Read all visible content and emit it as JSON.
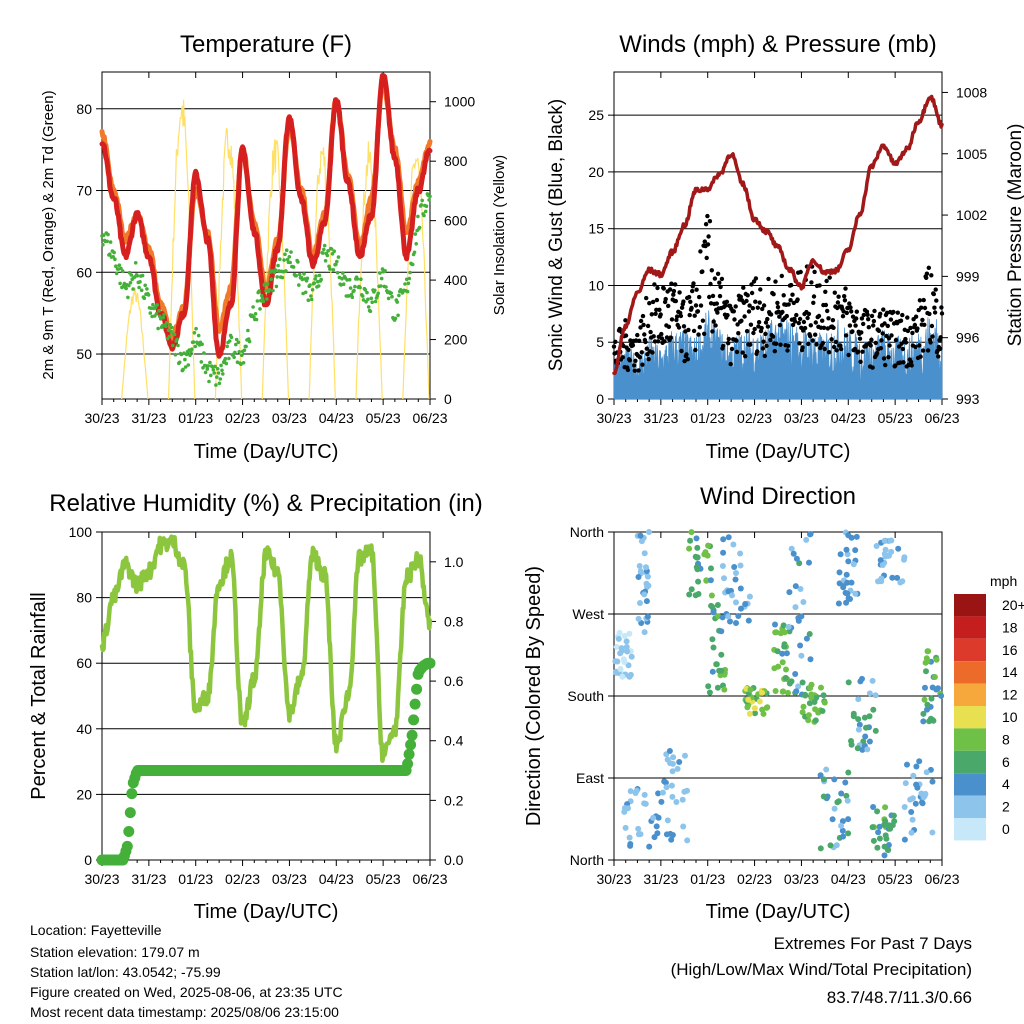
{
  "colors": {
    "temp_2m": "#d62020",
    "temp_9m": "#f07a2a",
    "dewpoint": "#44b03a",
    "solar": "#ffe066",
    "wind": "#4a90cc",
    "gust": "#000000",
    "pressure": "#a01818",
    "rh": "#8cc63e",
    "precip": "#44b03a",
    "extremes": "#c62828"
  },
  "x_ticks": [
    "30/23",
    "31/23",
    "01/23",
    "02/23",
    "03/23",
    "04/23",
    "05/23",
    "06/23"
  ],
  "chart_data": [
    {
      "id": "temperature",
      "type": "line",
      "title": "Temperature (F)",
      "xlabel": "Time (Day/UTC)",
      "ylabel": "2m & 9m T (Red, Orange) & 2m Td (Green)",
      "ylabel_right": "Solar Insolation (Yellow)",
      "ylim": [
        44.5,
        84.5
      ],
      "ylim_right": [
        0,
        1100
      ],
      "yticks": [
        "50",
        "60",
        "70",
        "80"
      ],
      "yticks_right": [
        "0",
        "200",
        "400",
        "600",
        "800",
        "1000"
      ],
      "x": [
        0,
        0.25,
        0.5,
        0.75,
        1,
        1.25,
        1.5,
        1.75,
        2,
        2.25,
        2.5,
        2.75,
        3,
        3.25,
        3.5,
        3.75,
        4,
        4.25,
        4.5,
        4.75,
        5,
        5.25,
        5.5,
        5.75,
        6,
        6.25,
        6.5,
        6.75,
        7
      ],
      "series": [
        {
          "key": "t9",
          "values": [
            77,
            70,
            64,
            67,
            63,
            56,
            52,
            56,
            70,
            65,
            53,
            58,
            75,
            66,
            58,
            64,
            78,
            70,
            62,
            67,
            81,
            72,
            63,
            69,
            83,
            75,
            65,
            71,
            76
          ]
        },
        {
          "key": "t2",
          "values": [
            76,
            69,
            62,
            67,
            62,
            55,
            51,
            55,
            72,
            64,
            50,
            56,
            75,
            65,
            56,
            63,
            79,
            69,
            61,
            66,
            81,
            71,
            62,
            67,
            84,
            74,
            62,
            70,
            75
          ]
        },
        {
          "key": "td",
          "values": [
            65,
            62,
            58,
            60,
            56,
            54,
            52,
            49,
            52,
            48,
            47,
            51,
            50,
            55,
            58,
            60,
            62,
            59,
            57,
            62,
            61,
            58,
            59,
            56,
            60,
            55,
            58,
            66,
            70
          ]
        },
        {
          "key": "solar",
          "axis": "right",
          "day_peaks": [
            380,
            1050,
            950,
            890,
            890,
            870,
            870,
            420
          ],
          "peak_offsets": [
            0.7,
            0.7,
            0.7,
            0.7,
            0.7,
            0.7,
            0.7,
            0.7
          ]
        }
      ]
    },
    {
      "id": "winds",
      "type": "line",
      "title": "Winds (mph) & Pressure (mb)",
      "xlabel": "Time (Day/UTC)",
      "ylabel": "Sonic Wind & Gust (Blue, Black)",
      "ylabel_right": "Station Pressure (Maroon)",
      "ylim": [
        0,
        28.8
      ],
      "ylim_right": [
        993,
        1009
      ],
      "yticks": [
        "0",
        "5",
        "10",
        "15",
        "20",
        "25"
      ],
      "yticks_right": [
        "993",
        "996",
        "999",
        "1002",
        "1005",
        "1008"
      ],
      "x": [
        0,
        0.25,
        0.5,
        0.75,
        1,
        1.25,
        1.5,
        1.75,
        2,
        2.25,
        2.5,
        2.75,
        3,
        3.25,
        3.5,
        3.75,
        4,
        4.25,
        4.5,
        4.75,
        5,
        5.25,
        5.5,
        5.75,
        6,
        6.25,
        6.5,
        6.75,
        7
      ],
      "series": [
        {
          "key": "pressure",
          "axis": "right",
          "values": [
            994.3,
            996.6,
            998.2,
            999.3,
            999.1,
            1000.2,
            1001.5,
            1003.2,
            1003.3,
            1004,
            1005,
            1003.5,
            1001.8,
            1001.2,
            1000.4,
            999.3,
            998.5,
            999.8,
            999.2,
            999.3,
            1000.3,
            1002.1,
            1004.4,
            1005.4,
            1004.5,
            1005.2,
            1006.6,
            1007.8,
            1006.4
          ]
        },
        {
          "key": "wind_mean",
          "values": [
            2.5,
            3,
            2.5,
            3.5,
            3,
            4,
            4,
            3.5,
            5,
            4,
            3.5,
            4,
            4,
            4,
            5,
            4.5,
            4,
            4,
            3.5,
            4.5,
            4,
            3.5,
            3.5,
            4,
            3.5,
            3.5,
            4,
            5,
            4
          ]
        },
        {
          "key": "gust_mean",
          "values": [
            4,
            5,
            4.5,
            7,
            7.5,
            8,
            6,
            8,
            12,
            8,
            6,
            7,
            8,
            7.5,
            8,
            8.5,
            8,
            9,
            8,
            8,
            7,
            6,
            5.5,
            6,
            5.5,
            5.5,
            6,
            9,
            6
          ]
        }
      ]
    },
    {
      "id": "humidity",
      "type": "line",
      "title": "Relative Humidity (%) & Precipitation (in)",
      "xlabel": "Time (Day/UTC)",
      "ylabel": "Percent & Total Rainfall",
      "ylim": [
        0,
        100
      ],
      "ylim_right": [
        0,
        1.1
      ],
      "yticks": [
        "0",
        "20",
        "40",
        "60",
        "80",
        "100"
      ],
      "yticks_right": [
        "0.0",
        "0.2",
        "0.4",
        "0.6",
        "0.8",
        "1.0"
      ],
      "x": [
        0,
        0.25,
        0.5,
        0.75,
        1,
        1.25,
        1.5,
        1.75,
        2,
        2.25,
        2.5,
        2.75,
        3,
        3.25,
        3.5,
        3.75,
        4,
        4.25,
        4.5,
        4.75,
        5,
        5.25,
        5.5,
        5.75,
        6,
        6.25,
        6.5,
        6.75,
        7
      ],
      "series": [
        {
          "key": "rh",
          "values": [
            66,
            80,
            90,
            84,
            88,
            96,
            97,
            90,
            46,
            50,
            85,
            92,
            41,
            55,
            93,
            88,
            45,
            55,
            93,
            87,
            35,
            50,
            92,
            94,
            32,
            40,
            86,
            92,
            72
          ]
        },
        {
          "key": "precip",
          "axis": "right",
          "x": [
            0,
            0.45,
            0.55,
            0.6,
            0.65,
            0.75,
            0.8,
            6.0,
            6.5,
            6.62,
            6.68,
            6.75,
            6.85,
            6.95,
            7.0
          ],
          "values": [
            0,
            0,
            0.05,
            0.15,
            0.25,
            0.3,
            0.3,
            0.3,
            0.3,
            0.42,
            0.52,
            0.63,
            0.65,
            0.66,
            0.66
          ]
        }
      ]
    },
    {
      "id": "direction",
      "type": "scatter",
      "title": "Wind Direction",
      "xlabel": "Time (Day/UTC)",
      "ylabel": "Direction (Colored By Speed)",
      "ylim": [
        0,
        360
      ],
      "yticks": [
        "North",
        "East",
        "South",
        "West",
        "North"
      ],
      "colorbar": {
        "unit": "mph",
        "labels": [
          "0",
          "2",
          "4",
          "6",
          "8",
          "10",
          "12",
          "14",
          "16",
          "18",
          "20+"
        ],
        "colors": [
          "#c6e8f8",
          "#8cc4ec",
          "#4a90cc",
          "#4aa86a",
          "#6fc046",
          "#e8e050",
          "#f6a83c",
          "#ec6a2a",
          "#dc3a2a",
          "#c41e1e",
          "#9a1414"
        ]
      },
      "clusters": [
        {
          "x": [
            0.0,
            0.4
          ],
          "dir": [
            200,
            250
          ],
          "speed": [
            0,
            3
          ]
        },
        {
          "x": [
            0.2,
            1.0
          ],
          "dir": [
            10,
            80
          ],
          "speed": [
            1,
            5
          ]
        },
        {
          "x": [
            0.5,
            0.8
          ],
          "dir": [
            250,
            360
          ],
          "speed": [
            1,
            4
          ]
        },
        {
          "x": [
            1.0,
            1.6
          ],
          "dir": [
            10,
            120
          ],
          "speed": [
            1,
            4
          ]
        },
        {
          "x": [
            1.6,
            2.1
          ],
          "dir": [
            290,
            360
          ],
          "speed": [
            4,
            9
          ]
        },
        {
          "x": [
            2.0,
            2.4
          ],
          "dir": [
            180,
            280
          ],
          "speed": [
            3,
            8
          ]
        },
        {
          "x": [
            2.3,
            2.9
          ],
          "dir": [
            260,
            360
          ],
          "speed": [
            1,
            5
          ]
        },
        {
          "x": [
            2.8,
            3.3
          ],
          "dir": [
            160,
            190
          ],
          "speed": [
            6,
            10
          ]
        },
        {
          "x": [
            3.4,
            3.8
          ],
          "dir": [
            180,
            260
          ],
          "speed": [
            4,
            9
          ]
        },
        {
          "x": [
            3.7,
            4.2
          ],
          "dir": [
            180,
            360
          ],
          "speed": [
            1,
            6
          ]
        },
        {
          "x": [
            4.0,
            4.5
          ],
          "dir": [
            150,
            200
          ],
          "speed": [
            5,
            9
          ]
        },
        {
          "x": [
            4.4,
            5.0
          ],
          "dir": [
            10,
            100
          ],
          "speed": [
            2,
            6
          ]
        },
        {
          "x": [
            4.8,
            5.2
          ],
          "dir": [
            280,
            360
          ],
          "speed": [
            2,
            5
          ]
        },
        {
          "x": [
            5.0,
            5.6
          ],
          "dir": [
            120,
            200
          ],
          "speed": [
            2,
            6
          ]
        },
        {
          "x": [
            5.5,
            6.0
          ],
          "dir": [
            5,
            60
          ],
          "speed": [
            3,
            8
          ]
        },
        {
          "x": [
            5.6,
            6.2
          ],
          "dir": [
            300,
            360
          ],
          "speed": [
            1,
            4
          ]
        },
        {
          "x": [
            6.2,
            6.8
          ],
          "dir": [
            20,
            110
          ],
          "speed": [
            1,
            5
          ]
        },
        {
          "x": [
            6.6,
            7.0
          ],
          "dir": [
            150,
            230
          ],
          "speed": [
            3,
            8
          ]
        }
      ]
    }
  ],
  "info": {
    "location": "Location: Fayetteville",
    "elevation": "Station elevation: 179.07 m",
    "latlon": "Station lat/lon: 43.0542; -75.99",
    "created": "Figure created on Wed, 2025-08-06, at 23:35 UTC",
    "timestamp": "Most recent data timestamp: 2025/08/06 23:15:00"
  },
  "extremes": {
    "title": "Extremes For Past 7 Days",
    "subtitle": "(High/Low/Max Wind/Total Precipitation)",
    "values": "83.7/48.7/11.3/0.66"
  }
}
